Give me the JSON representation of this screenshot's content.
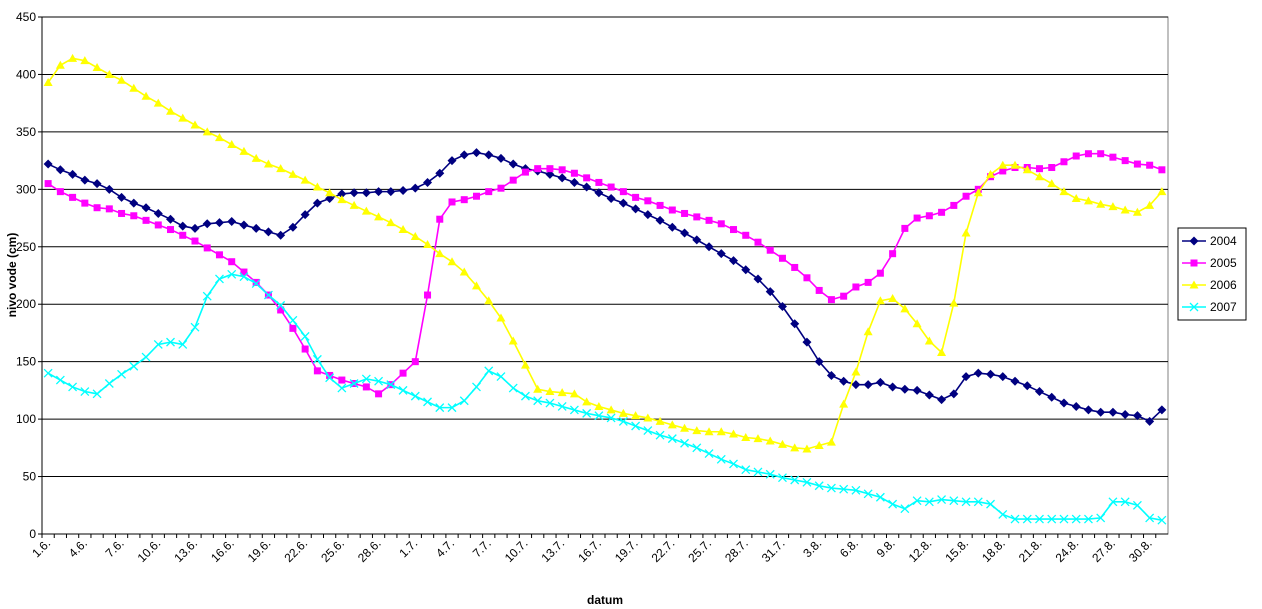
{
  "chart_data": {
    "type": "line",
    "y_label": "nivo vode (cm)",
    "x_label": "datum",
    "categories": [
      "1.6.",
      null,
      null,
      "4.6.",
      null,
      null,
      "7.6.",
      null,
      null,
      "10.6.",
      null,
      null,
      "13.6.",
      null,
      null,
      "16.6.",
      null,
      null,
      "19.6.",
      null,
      null,
      "22.6.",
      null,
      null,
      "25.6.",
      null,
      null,
      "28.6.",
      null,
      null,
      "1.7.",
      null,
      null,
      "4.7.",
      null,
      null,
      "7.7.",
      null,
      null,
      "10.7.",
      null,
      null,
      "13.7.",
      null,
      null,
      "16.7.",
      null,
      null,
      "19.7.",
      null,
      null,
      "22.7.",
      null,
      null,
      "25.7.",
      null,
      null,
      "28.7.",
      null,
      null,
      "31.7.",
      null,
      null,
      "3.8.",
      null,
      null,
      "6.8.",
      null,
      null,
      "9.8.",
      null,
      null,
      "12.8.",
      null,
      null,
      "15.8.",
      null,
      null,
      "18.8.",
      null,
      null,
      "21.8.",
      null,
      null,
      "24.8.",
      null,
      null,
      "27.8.",
      null,
      null,
      "30.8.",
      null
    ],
    "series": [
      {
        "name": "2004",
        "color": "#000080",
        "marker": "diamond",
        "values": [
          322,
          317,
          313,
          308,
          305,
          300,
          293,
          288,
          284,
          279,
          274,
          268,
          266,
          270,
          271,
          272,
          269,
          266,
          263,
          260,
          267,
          278,
          288,
          292,
          296,
          297,
          297,
          298,
          298,
          299,
          301,
          306,
          314,
          325,
          330,
          332,
          330,
          327,
          322,
          318,
          316,
          313,
          310,
          306,
          302,
          297,
          292,
          288,
          283,
          278,
          273,
          267,
          262,
          256,
          250,
          244,
          238,
          230,
          222,
          211,
          198,
          183,
          167,
          150,
          138,
          133,
          130,
          130,
          132,
          128,
          126,
          125,
          121,
          117,
          122,
          137,
          140,
          139,
          137,
          133,
          129,
          124,
          119,
          114,
          111,
          108,
          106,
          106,
          104,
          103,
          98,
          108
        ]
      },
      {
        "name": "2005",
        "color": "#ff00ff",
        "marker": "square",
        "values": [
          305,
          298,
          293,
          288,
          284,
          283,
          279,
          277,
          273,
          269,
          265,
          260,
          255,
          249,
          243,
          237,
          228,
          219,
          208,
          195,
          179,
          161,
          142,
          138,
          134,
          131,
          128,
          122,
          130,
          140,
          150,
          208,
          274,
          289,
          291,
          294,
          298,
          301,
          308,
          315,
          318,
          318,
          317,
          314,
          310,
          306,
          302,
          298,
          293,
          290,
          286,
          282,
          279,
          276,
          273,
          270,
          265,
          260,
          254,
          247,
          240,
          232,
          223,
          212,
          204,
          207,
          215,
          219,
          227,
          244,
          266,
          275,
          277,
          280,
          286,
          294,
          300,
          311,
          316,
          319,
          319,
          318,
          319,
          324,
          329,
          331,
          331,
          328,
          325,
          322,
          321,
          317
        ]
      },
      {
        "name": "2006",
        "color": "#ffff00",
        "marker": "triangle",
        "values": [
          393,
          408,
          414,
          412,
          406,
          400,
          395,
          388,
          381,
          375,
          368,
          362,
          356,
          350,
          345,
          339,
          333,
          327,
          322,
          318,
          313,
          308,
          302,
          297,
          291,
          286,
          281,
          276,
          271,
          265,
          259,
          252,
          244,
          237,
          228,
          216,
          203,
          188,
          168,
          147,
          126,
          124,
          123,
          122,
          115,
          111,
          108,
          105,
          103,
          101,
          98,
          95,
          92,
          90,
          89,
          89,
          87,
          84,
          83,
          81,
          78,
          75,
          74,
          77,
          80,
          113,
          141,
          176,
          203,
          205,
          196,
          183,
          168,
          158,
          201,
          262,
          297,
          313,
          321,
          321,
          317,
          311,
          305,
          298,
          292,
          290,
          287,
          285,
          282,
          280,
          286,
          298
        ]
      },
      {
        "name": "2007",
        "color": "#00ffff",
        "marker": "x",
        "values": [
          140,
          134,
          128,
          124,
          122,
          131,
          139,
          146,
          154,
          165,
          167,
          165,
          180,
          207,
          222,
          226,
          224,
          218,
          208,
          199,
          186,
          172,
          152,
          136,
          127,
          131,
          135,
          133,
          130,
          125,
          120,
          115,
          110,
          110,
          116,
          128,
          142,
          137,
          127,
          120,
          116,
          114,
          111,
          108,
          105,
          103,
          101,
          98,
          94,
          90,
          86,
          83,
          79,
          75,
          70,
          65,
          61,
          56,
          54,
          52,
          49,
          47,
          45,
          42,
          40,
          39,
          38,
          35,
          32,
          26,
          22,
          29,
          28,
          30,
          29,
          28,
          28,
          26,
          17,
          13,
          13,
          13,
          13,
          13,
          13,
          13,
          14,
          28,
          28,
          25,
          14,
          12
        ]
      }
    ],
    "ylim": [
      0,
      450
    ],
    "yticks": [
      0,
      50,
      100,
      150,
      200,
      250,
      300,
      350,
      400,
      450
    ],
    "grid": true,
    "legend": "right"
  }
}
